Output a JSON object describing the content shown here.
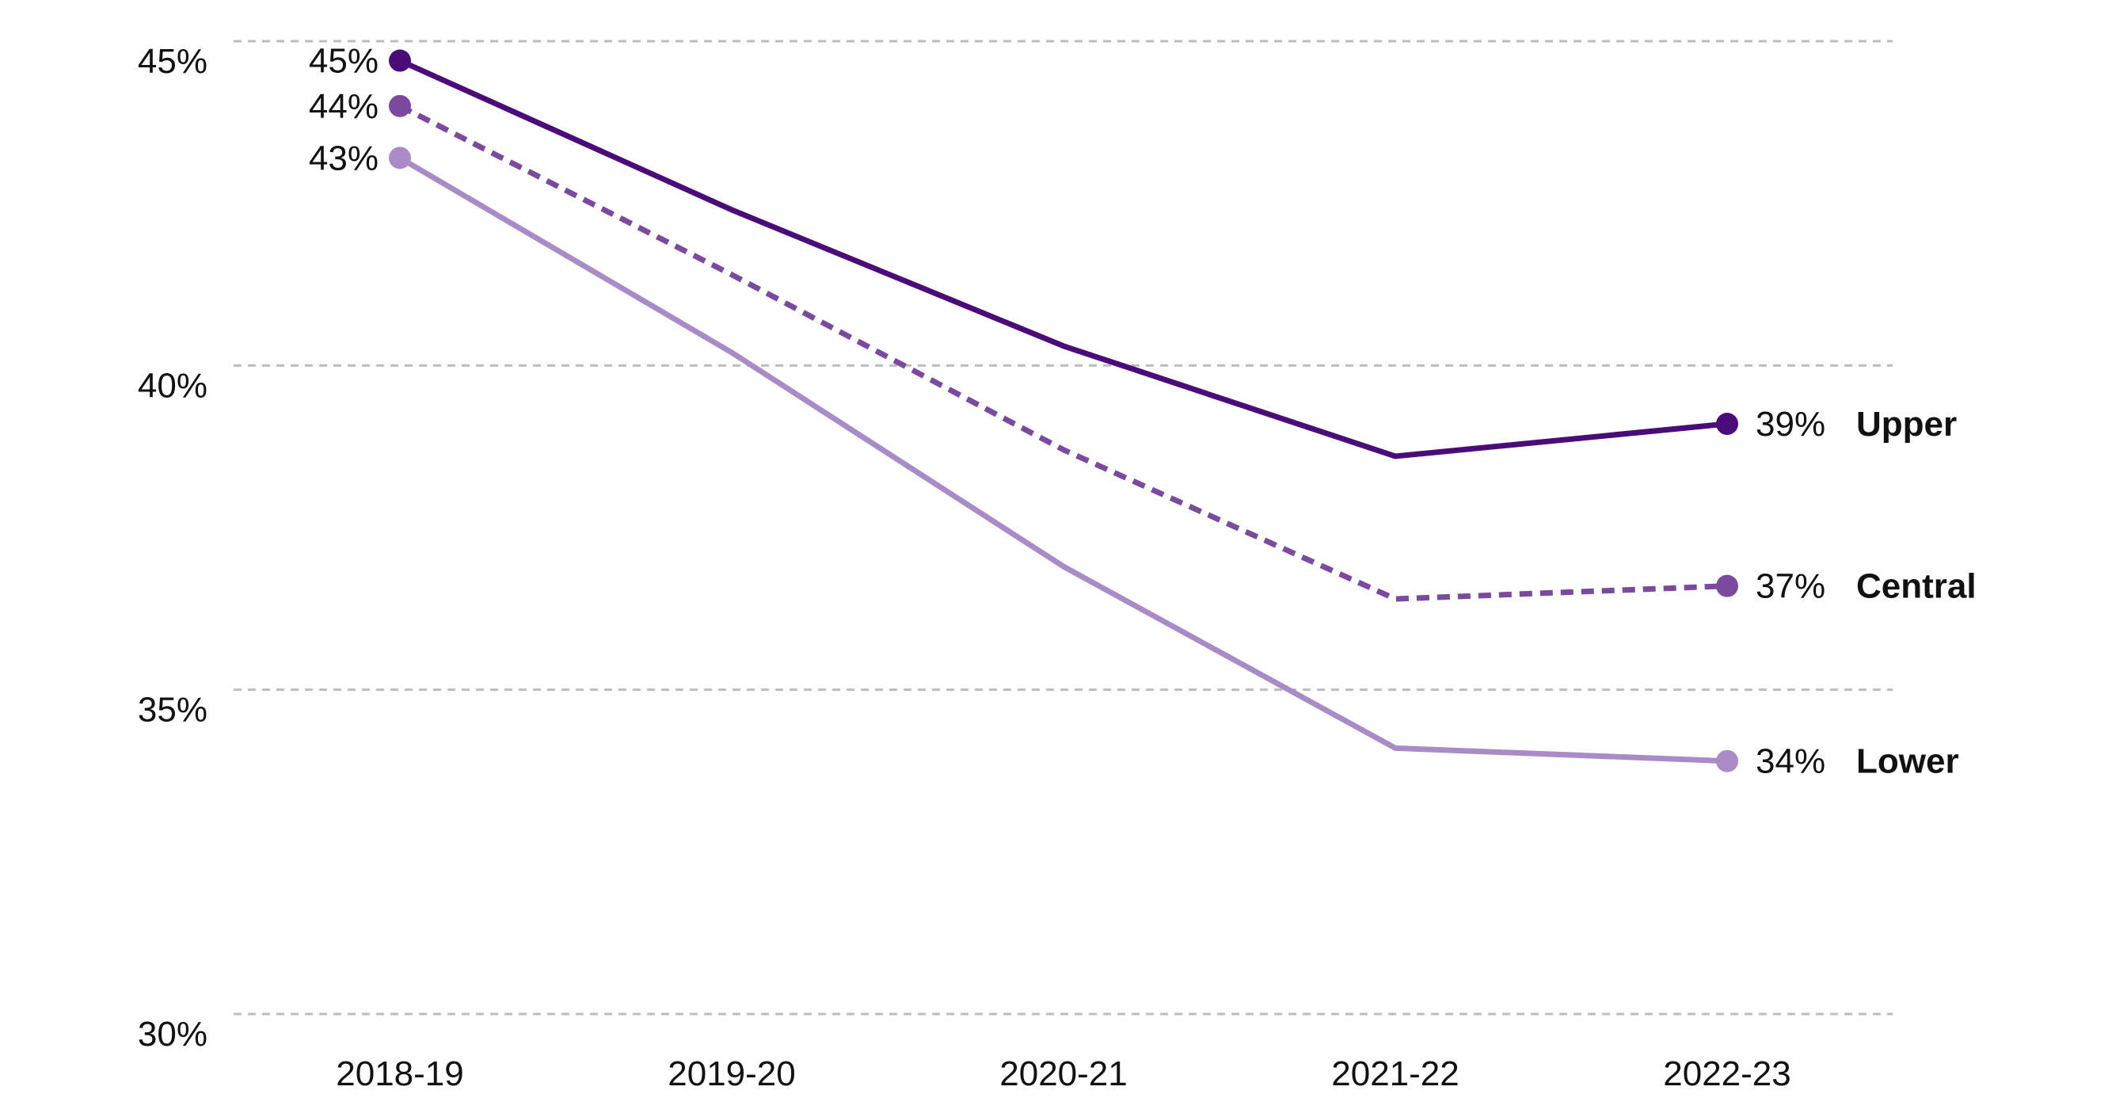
{
  "chart_data": {
    "type": "line",
    "title": "",
    "xlabel": "",
    "ylabel": "",
    "categories": [
      "2018-19",
      "2019-20",
      "2020-21",
      "2021-22",
      "2022-23"
    ],
    "ylim": [
      30,
      45
    ],
    "yticks": [
      30,
      35,
      40,
      45
    ],
    "ytick_labels": [
      "30%",
      "35%",
      "40%",
      "45%"
    ],
    "grid": true,
    "legend": "direct labels at line ends",
    "series": [
      {
        "name": "Upper",
        "values": [
          44.7,
          42.4,
          40.3,
          38.6,
          39.1
        ],
        "start_label": "45%",
        "end_label": "39%",
        "color": "#4b0c7a",
        "dashed": false
      },
      {
        "name": "Central",
        "values": [
          44.0,
          41.4,
          38.7,
          36.4,
          36.6
        ],
        "start_label": "44%",
        "end_label": "37%",
        "color": "#7b4a9e",
        "dashed": true
      },
      {
        "name": "Lower",
        "values": [
          43.2,
          40.2,
          36.9,
          34.1,
          33.9
        ],
        "start_label": "43%",
        "end_label": "34%",
        "color": "#a98cc7",
        "dashed": false
      }
    ]
  }
}
